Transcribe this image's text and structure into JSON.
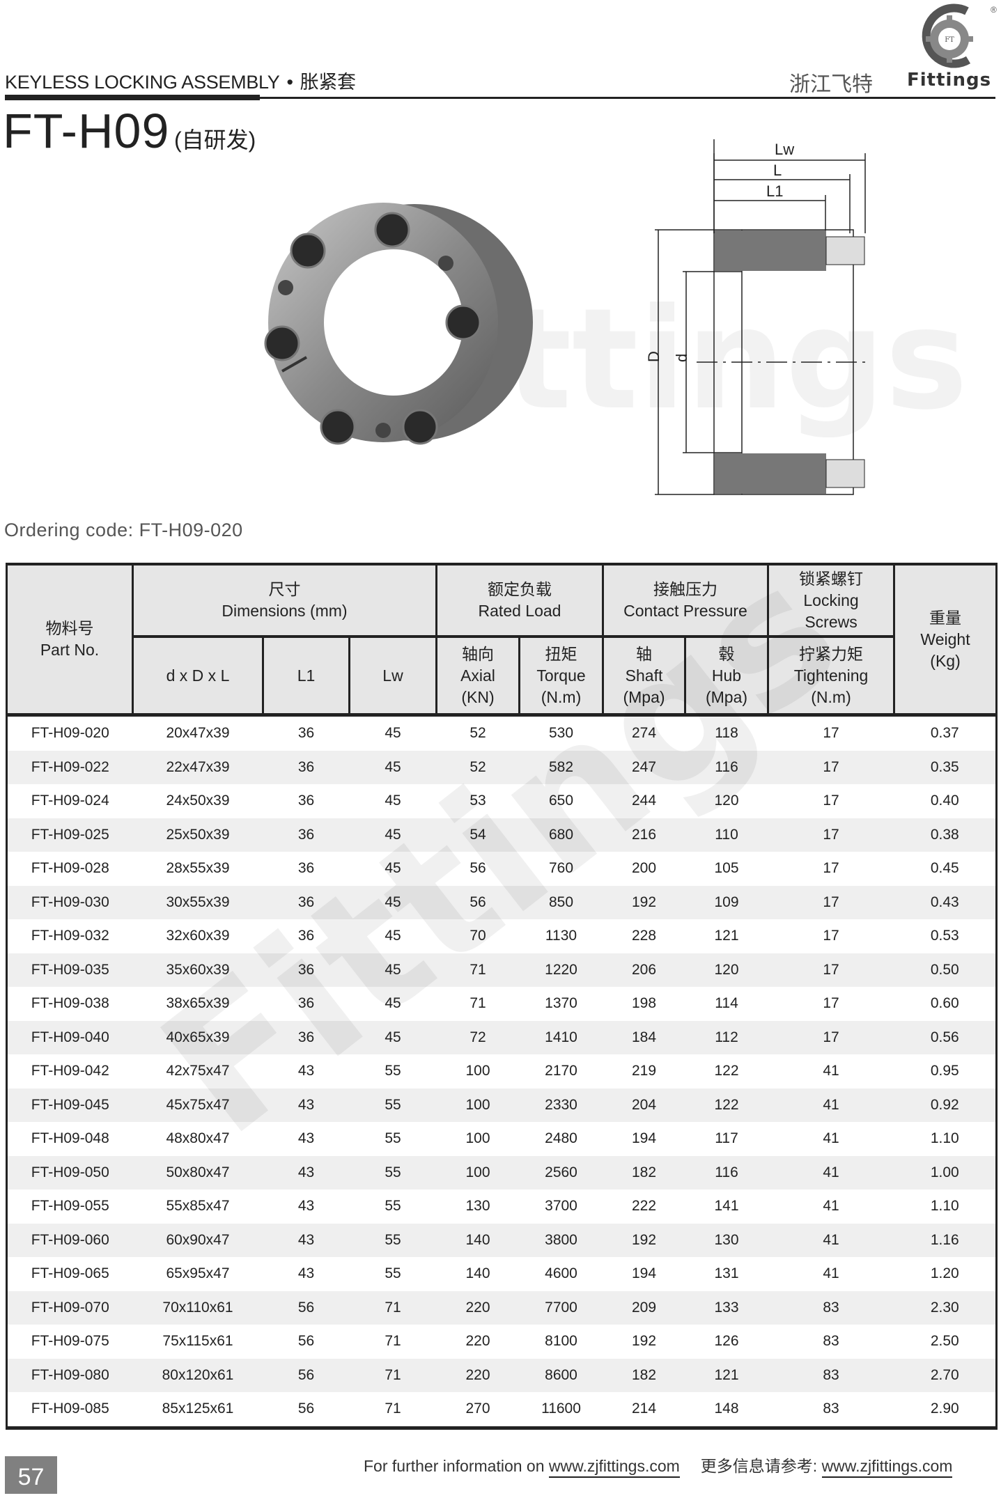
{
  "header": {
    "category_en": "KEYLESS LOCKING ASSEMBLY",
    "separator": "•",
    "category_cn": "胀紧套",
    "company_cn": "浙江飞特",
    "logo_text": "Fittings",
    "logo_badge": "FT",
    "registered": "®"
  },
  "product": {
    "model": "FT-H09",
    "note": "(自研发)",
    "ordering_code": "Ordering code: FT-H09-020"
  },
  "drawing_labels": {
    "lw": "Lw",
    "l": "L",
    "l1": "L1",
    "D": "D",
    "d": "d"
  },
  "watermark": "Fittings",
  "table": {
    "headers": {
      "part_cn": "物料号",
      "part_en": "Part No.",
      "dim_cn": "尺寸",
      "dim_en": "Dimensions (mm)",
      "load_cn": "额定负载",
      "load_en": "Rated Load",
      "pressure_cn": "接触压力",
      "pressure_en": "Contact Pressure",
      "screw_cn": "锁紧螺钉",
      "screw_en1": "Locking",
      "screw_en2": "Screws",
      "weight_cn": "重量",
      "weight_en": "Weight",
      "weight_unit": "(Kg)",
      "dxDxL": "d x D x L",
      "l1": "L1",
      "lw": "Lw",
      "axial_cn": "轴向",
      "axial_en": "Axial",
      "axial_unit": "(KN)",
      "torque_cn": "扭矩",
      "torque_en": "Torque",
      "torque_unit": "(N.m)",
      "shaft_cn": "轴",
      "shaft_en": "Shaft",
      "shaft_unit": "(Mpa)",
      "hub_cn": "毂",
      "hub_en": "Hub",
      "hub_unit": "(Mpa)",
      "tight_cn": "拧紧力矩",
      "tight_en": "Tightening",
      "tight_unit": "(N.m)"
    },
    "rows": [
      [
        "FT-H09-020",
        "20x47x39",
        "36",
        "45",
        "52",
        "530",
        "274",
        "118",
        "17",
        "0.37"
      ],
      [
        "FT-H09-022",
        "22x47x39",
        "36",
        "45",
        "52",
        "582",
        "247",
        "116",
        "17",
        "0.35"
      ],
      [
        "FT-H09-024",
        "24x50x39",
        "36",
        "45",
        "53",
        "650",
        "244",
        "120",
        "17",
        "0.40"
      ],
      [
        "FT-H09-025",
        "25x50x39",
        "36",
        "45",
        "54",
        "680",
        "216",
        "110",
        "17",
        "0.38"
      ],
      [
        "FT-H09-028",
        "28x55x39",
        "36",
        "45",
        "56",
        "760",
        "200",
        "105",
        "17",
        "0.45"
      ],
      [
        "FT-H09-030",
        "30x55x39",
        "36",
        "45",
        "56",
        "850",
        "192",
        "109",
        "17",
        "0.43"
      ],
      [
        "FT-H09-032",
        "32x60x39",
        "36",
        "45",
        "70",
        "1130",
        "228",
        "121",
        "17",
        "0.53"
      ],
      [
        "FT-H09-035",
        "35x60x39",
        "36",
        "45",
        "71",
        "1220",
        "206",
        "120",
        "17",
        "0.50"
      ],
      [
        "FT-H09-038",
        "38x65x39",
        "36",
        "45",
        "71",
        "1370",
        "198",
        "114",
        "17",
        "0.60"
      ],
      [
        "FT-H09-040",
        "40x65x39",
        "36",
        "45",
        "72",
        "1410",
        "184",
        "112",
        "17",
        "0.56"
      ],
      [
        "FT-H09-042",
        "42x75x47",
        "43",
        "55",
        "100",
        "2170",
        "219",
        "122",
        "41",
        "0.95"
      ],
      [
        "FT-H09-045",
        "45x75x47",
        "43",
        "55",
        "100",
        "2330",
        "204",
        "122",
        "41",
        "0.92"
      ],
      [
        "FT-H09-048",
        "48x80x47",
        "43",
        "55",
        "100",
        "2480",
        "194",
        "117",
        "41",
        "1.10"
      ],
      [
        "FT-H09-050",
        "50x80x47",
        "43",
        "55",
        "100",
        "2560",
        "182",
        "116",
        "41",
        "1.00"
      ],
      [
        "FT-H09-055",
        "55x85x47",
        "43",
        "55",
        "130",
        "3700",
        "222",
        "141",
        "41",
        "1.10"
      ],
      [
        "FT-H09-060",
        "60x90x47",
        "43",
        "55",
        "140",
        "3800",
        "192",
        "130",
        "41",
        "1.16"
      ],
      [
        "FT-H09-065",
        "65x95x47",
        "43",
        "55",
        "140",
        "4600",
        "194",
        "131",
        "41",
        "1.20"
      ],
      [
        "FT-H09-070",
        "70x110x61",
        "56",
        "71",
        "220",
        "7700",
        "209",
        "133",
        "83",
        "2.30"
      ],
      [
        "FT-H09-075",
        "75x115x61",
        "56",
        "71",
        "220",
        "8100",
        "192",
        "126",
        "83",
        "2.50"
      ],
      [
        "FT-H09-080",
        "80x120x61",
        "56",
        "71",
        "220",
        "8600",
        "182",
        "121",
        "83",
        "2.70"
      ],
      [
        "FT-H09-085",
        "85x125x61",
        "56",
        "71",
        "270",
        "11600",
        "214",
        "148",
        "83",
        "2.90"
      ]
    ]
  },
  "footer": {
    "page_number": "57",
    "info_en": "For further information on ",
    "url": "www.zjfittings.com",
    "info_cn": "更多信息请参考: "
  }
}
